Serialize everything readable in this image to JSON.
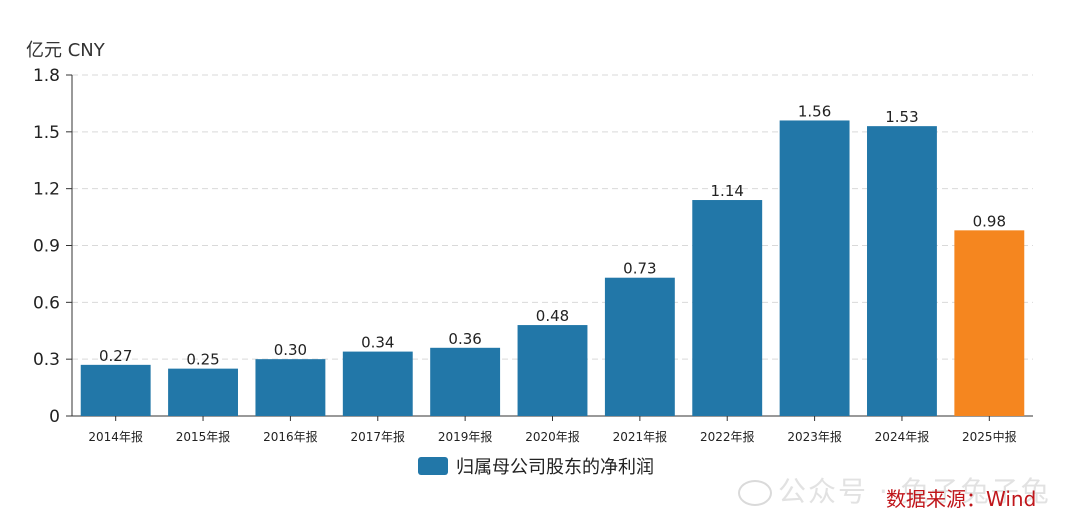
{
  "chart_data": {
    "type": "bar",
    "unit_label": "亿元  CNY",
    "categories": [
      "2014年报",
      "2015年报",
      "2016年报",
      "2017年报",
      "2019年报",
      "2020年报",
      "2021年报",
      "2022年报",
      "2023年报",
      "2024年报",
      "2025中报"
    ],
    "values": [
      0.27,
      0.25,
      0.3,
      0.34,
      0.36,
      0.48,
      0.73,
      1.14,
      1.56,
      1.53,
      0.98
    ],
    "value_labels": [
      "0.27",
      "0.25",
      "0.30",
      "0.34",
      "0.36",
      "0.48",
      "0.73",
      "1.14",
      "1.56",
      "1.53",
      "0.98"
    ],
    "highlight_index": 10,
    "ylim": [
      0,
      1.8
    ],
    "yticks": [
      0,
      0.3,
      0.6,
      0.9,
      1.2,
      1.5,
      1.8
    ],
    "ytick_labels": [
      "0",
      "0.3",
      "0.6",
      "0.9",
      "1.2",
      "1.5",
      "1.8"
    ],
    "grid": true,
    "legend": {
      "position": "bottom",
      "label": "归属母公司股东的净利润"
    },
    "colors": {
      "bar": "#2277a8",
      "highlight": "#f5861f",
      "grid": "#d9d9d9",
      "axis": "#333333"
    }
  },
  "source_label": "数据来源：Wind",
  "source_color": "#c0161b",
  "watermark": "公众号 · 兔子兔子兔"
}
